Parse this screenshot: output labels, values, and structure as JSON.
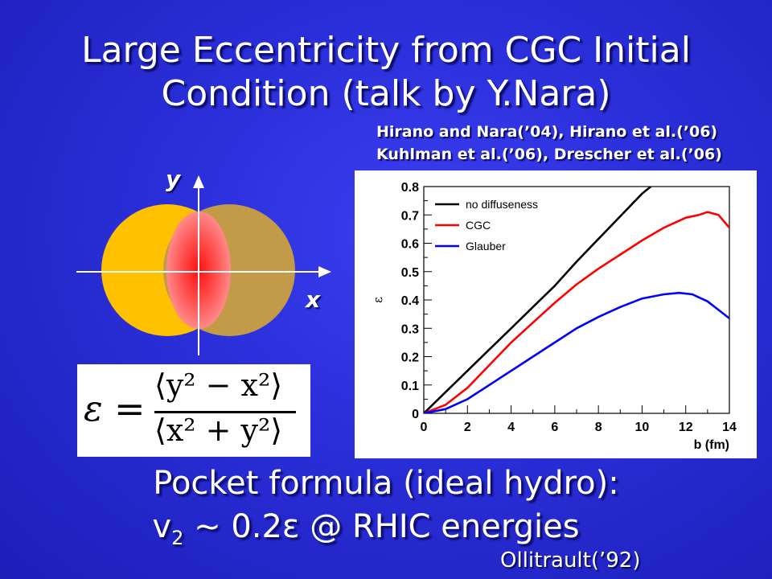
{
  "slide": {
    "title_line1": "Large Eccentricity from CGC Initial",
    "title_line2": "Condition (talk by Y.Nara)",
    "refs_line1": "Hirano and Nara(’04), Hirano et al.(’06)",
    "refs_line2": "Kuhlman et al.(’06), Drescher et al.(’06)",
    "axis_y": "y",
    "axis_x": "x",
    "formula": {
      "lhs": "ε",
      "eq": "=",
      "numerator": "⟨y² − x²⟩",
      "denominator": "⟨x² + y²⟩"
    },
    "pocket_line1": "Pocket formula (ideal hydro):",
    "pocket_v": "v",
    "pocket_sub": "2",
    "pocket_rest": " ~ 0.2ε @ RHIC energies",
    "credit": "Ollitrault(’92)",
    "colors": {
      "background": "#2a2ed8",
      "nucleus_left": "#ffc000",
      "nucleus_right": "#c39a48",
      "overlap": "#ff2020"
    }
  },
  "chart_data": {
    "type": "line",
    "xlabel": "b (fm)",
    "ylabel": "ε",
    "xlim": [
      0,
      14
    ],
    "ylim": [
      0,
      0.8
    ],
    "x_ticks": [
      "0",
      "2",
      "4",
      "6",
      "8",
      "10",
      "12",
      "14"
    ],
    "y_ticks": [
      "0",
      "0.1",
      "0.2",
      "0.3",
      "0.4",
      "0.5",
      "0.6",
      "0.7",
      "0.8"
    ],
    "legend_position": "top-left",
    "series": [
      {
        "name": "no diffuseness",
        "color": "#000000",
        "x": [
          0,
          1,
          2,
          3,
          4,
          5,
          6,
          7,
          8,
          9,
          10,
          10.4
        ],
        "y": [
          0,
          0.075,
          0.15,
          0.225,
          0.3,
          0.375,
          0.45,
          0.535,
          0.615,
          0.695,
          0.775,
          0.8
        ]
      },
      {
        "name": "CGC",
        "color": "#ff0000",
        "x": [
          0,
          1,
          2,
          3,
          4,
          5,
          6,
          7,
          8,
          9,
          10,
          11,
          12,
          12.6,
          13,
          13.5,
          14
        ],
        "y": [
          0,
          0.03,
          0.09,
          0.17,
          0.25,
          0.32,
          0.39,
          0.455,
          0.51,
          0.56,
          0.61,
          0.655,
          0.69,
          0.7,
          0.71,
          0.7,
          0.655
        ]
      },
      {
        "name": "Glauber",
        "color": "#0000ff",
        "x": [
          0,
          1,
          2,
          3,
          4,
          5,
          6,
          7,
          8,
          9,
          10,
          11,
          11.7,
          12.3,
          13,
          14
        ],
        "y": [
          0,
          0.015,
          0.05,
          0.1,
          0.15,
          0.2,
          0.25,
          0.3,
          0.34,
          0.375,
          0.405,
          0.42,
          0.425,
          0.42,
          0.395,
          0.335
        ]
      }
    ]
  }
}
